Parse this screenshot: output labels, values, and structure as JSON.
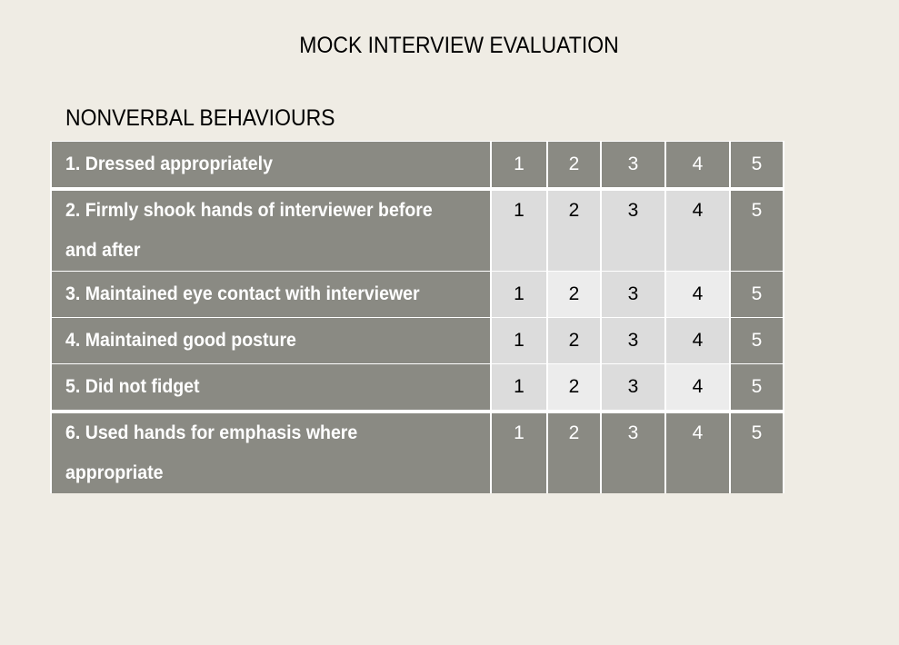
{
  "title": "MOCK INTERVIEW EVALUATION",
  "section_title": "NONVERBAL BEHAVIOURS",
  "rows": [
    {
      "label": "1. Dressed appropriately",
      "ratings": [
        "1",
        "2",
        "3",
        "4",
        "5"
      ]
    },
    {
      "label": "2. Firmly shook hands of interviewer before and after",
      "ratings": [
        "1",
        "2",
        "3",
        "4",
        "5"
      ]
    },
    {
      "label": "3. Maintained eye contact with interviewer",
      "ratings": [
        "1",
        "2",
        "3",
        "4",
        "5"
      ]
    },
    {
      "label": "4. Maintained good posture",
      "ratings": [
        "1",
        "2",
        "3",
        "4",
        "5"
      ]
    },
    {
      "label": "5. Did not fidget",
      "ratings": [
        "1",
        "2",
        "3",
        "4",
        "5"
      ]
    },
    {
      "label": "6. Used hands for emphasis where appropriate",
      "ratings": [
        "1",
        "2",
        "3",
        "4",
        "5"
      ]
    }
  ],
  "colors": {
    "background": "#efece4",
    "header_gray": "#8a8a83",
    "cell_light": "#dcdcdc",
    "cell_lighter": "#ececec"
  }
}
